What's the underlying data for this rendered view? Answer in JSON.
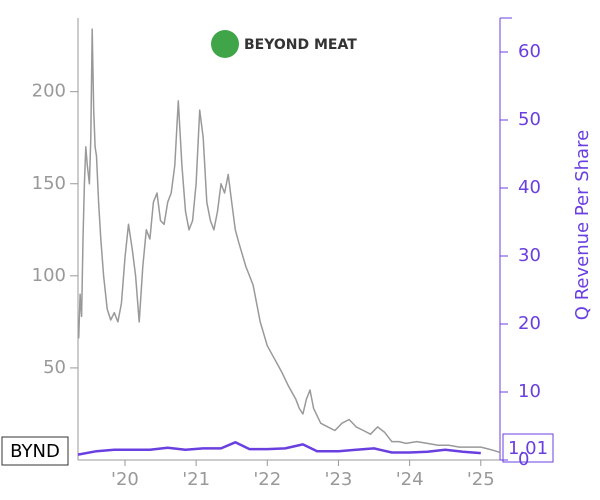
{
  "chart_data": {
    "type": "line",
    "logo_text": "BEYOND MEAT",
    "xlim": [
      2019.34,
      2025.27
    ],
    "xticks": [
      {
        "value": 2020,
        "label": "'20"
      },
      {
        "value": 2021,
        "label": "'21"
      },
      {
        "value": 2022,
        "label": "'22"
      },
      {
        "value": 2023,
        "label": "'23"
      },
      {
        "value": 2024,
        "label": "'24"
      },
      {
        "value": 2025,
        "label": "'25"
      }
    ],
    "ylim": [
      0,
      240
    ],
    "yticks": [
      50,
      100,
      150,
      200
    ],
    "y2lim": [
      0,
      65
    ],
    "y2ticks": [
      0,
      10,
      20,
      30,
      40,
      50,
      60
    ],
    "series": [
      {
        "name": "BYND",
        "color": "#999999",
        "x": [
          2019.35,
          2019.37,
          2019.39,
          2019.41,
          2019.43,
          2019.45,
          2019.47,
          2019.5,
          2019.52,
          2019.54,
          2019.56,
          2019.58,
          2019.6,
          2019.63,
          2019.66,
          2019.7,
          2019.75,
          2019.8,
          2019.85,
          2019.9,
          2019.95,
          2020.0,
          2020.05,
          2020.1,
          2020.15,
          2020.2,
          2020.25,
          2020.3,
          2020.35,
          2020.4,
          2020.45,
          2020.5,
          2020.55,
          2020.6,
          2020.65,
          2020.7,
          2020.75,
          2020.8,
          2020.85,
          2020.9,
          2020.95,
          2021.0,
          2021.05,
          2021.1,
          2021.15,
          2021.2,
          2021.25,
          2021.3,
          2021.35,
          2021.4,
          2021.45,
          2021.5,
          2021.55,
          2021.6,
          2021.7,
          2021.8,
          2021.9,
          2022.0,
          2022.1,
          2022.2,
          2022.3,
          2022.4,
          2022.45,
          2022.5,
          2022.55,
          2022.6,
          2022.65,
          2022.75,
          2022.85,
          2022.95,
          2023.05,
          2023.15,
          2023.25,
          2023.35,
          2023.45,
          2023.55,
          2023.65,
          2023.75,
          2023.85,
          2023.95,
          2024.1,
          2024.25,
          2024.4,
          2024.55,
          2024.7,
          2024.85,
          2025.0,
          2025.1,
          2025.2,
          2025.27
        ],
        "values": [
          66,
          90,
          78,
          120,
          150,
          170,
          160,
          150,
          175,
          234,
          190,
          170,
          165,
          140,
          120,
          100,
          82,
          76,
          80,
          75,
          85,
          110,
          128,
          115,
          100,
          75,
          105,
          125,
          120,
          140,
          145,
          130,
          128,
          140,
          145,
          160,
          195,
          160,
          135,
          125,
          130,
          150,
          190,
          175,
          140,
          130,
          125,
          135,
          150,
          145,
          155,
          140,
          125,
          118,
          105,
          95,
          75,
          62,
          55,
          48,
          40,
          33,
          28,
          25,
          33,
          38,
          28,
          20,
          18,
          16,
          20,
          22,
          18,
          16,
          14,
          18,
          15,
          10,
          10,
          9,
          10,
          9,
          8,
          8,
          7,
          7,
          7,
          6,
          5,
          4
        ]
      },
      {
        "name": "Q Revenue Per Share",
        "color": "#6a3fe0",
        "axis": "y2",
        "x": [
          2019.34,
          2019.6,
          2019.85,
          2020.1,
          2020.35,
          2020.6,
          2020.85,
          2021.1,
          2021.35,
          2021.55,
          2021.75,
          2022.0,
          2022.25,
          2022.5,
          2022.7,
          2023.0,
          2023.25,
          2023.5,
          2023.75,
          2024.0,
          2024.25,
          2024.5,
          2024.75,
          2025.0
        ],
        "values": [
          0.8,
          1.3,
          1.5,
          1.5,
          1.5,
          1.8,
          1.5,
          1.7,
          1.7,
          2.6,
          1.6,
          1.6,
          1.7,
          2.3,
          1.3,
          1.3,
          1.5,
          1.7,
          1.1,
          1.1,
          1.2,
          1.5,
          1.2,
          1.01
        ]
      }
    ]
  }
}
